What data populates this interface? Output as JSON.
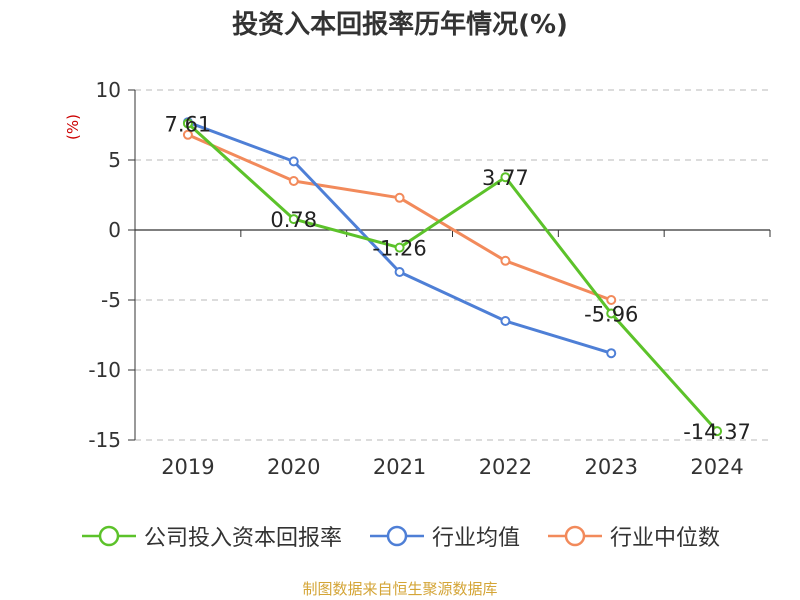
{
  "title": "投资入本回报率历年情况(%)",
  "source": "制图数据来自恒生聚源数据库",
  "chart_data": {
    "type": "line",
    "categories": [
      "2019",
      "2020",
      "2021",
      "2022",
      "2023",
      "2024"
    ],
    "ylim": [
      -15,
      10
    ],
    "yticks": [
      10,
      5,
      0,
      -5,
      -10,
      -15
    ],
    "ylabel": "(%)",
    "ylabel_color": "#cc0000",
    "grid": true,
    "legend_position": "bottom",
    "series": [
      {
        "name": "公司投入资本回报率",
        "color": "#5cc22a",
        "values": [
          7.61,
          0.78,
          -1.26,
          3.77,
          -5.96,
          -14.37
        ],
        "labels": [
          "7.61",
          "0.78",
          "-1.26",
          "3.77",
          "-5.96",
          "-14.37"
        ]
      },
      {
        "name": "行业均值",
        "color": "#4e7fd6",
        "values": [
          7.7,
          4.9,
          -3.0,
          -6.5,
          -8.8,
          null
        ]
      },
      {
        "name": "行业中位数",
        "color": "#f28a5b",
        "values": [
          6.8,
          3.5,
          2.3,
          -2.2,
          -5.0,
          null
        ]
      }
    ]
  }
}
